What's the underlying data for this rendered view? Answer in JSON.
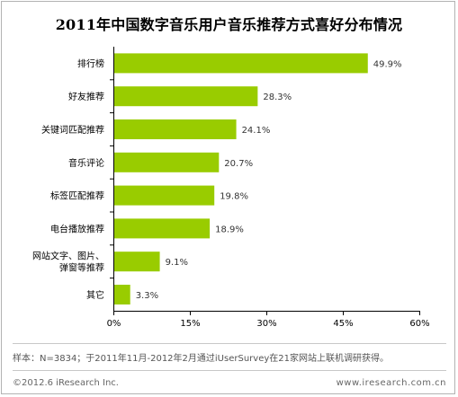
{
  "chart_data": {
    "type": "bar",
    "orientation": "horizontal",
    "title": "2011年中国数字音乐用户音乐推荐方式喜好分布情况",
    "categories": [
      "排行榜",
      "好友推荐",
      "关键词匹配推荐",
      "音乐评论",
      "标签匹配推荐",
      "电台播放推荐",
      "网站文字、图片、弹窗等推荐",
      "其它"
    ],
    "category_lines": [
      [
        "排行榜"
      ],
      [
        "好友推荐"
      ],
      [
        "关键词匹配推荐"
      ],
      [
        "音乐评论"
      ],
      [
        "标签匹配推荐"
      ],
      [
        "电台播放推荐"
      ],
      [
        "网站文字、图片、",
        "弹窗等推荐"
      ],
      [
        "其它"
      ]
    ],
    "values": [
      49.9,
      28.3,
      24.1,
      20.7,
      19.8,
      18.9,
      9.1,
      3.3
    ],
    "value_labels": [
      "49.9%",
      "28.3%",
      "24.1%",
      "20.7%",
      "19.8%",
      "18.9%",
      "9.1%",
      "3.3%"
    ],
    "xlim": [
      0,
      60
    ],
    "x_ticks": [
      0,
      15,
      30,
      45,
      60
    ],
    "x_tick_labels": [
      "0%",
      "15%",
      "30%",
      "45%",
      "60%"
    ],
    "grid": false,
    "bar_color": "#99cc00"
  },
  "footnote": "样本：N=3834；于2011年11月-2012年2月通过iUserSurvey在21家网站上联机调研获得。",
  "copyright": "©2012.6 iResearch Inc.",
  "site": "www.iresearch.com.cn"
}
